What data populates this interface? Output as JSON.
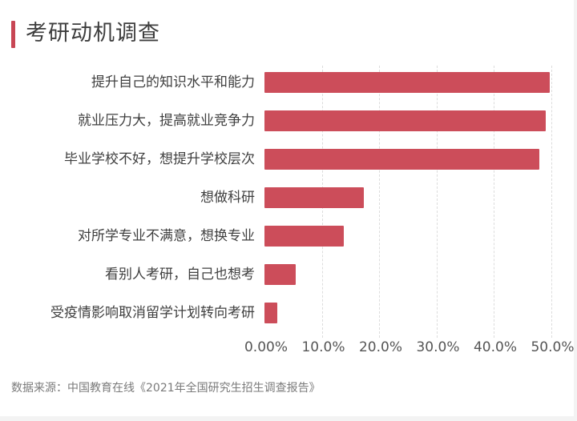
{
  "header": {
    "title": "考研动机调查",
    "accent_color": "#c84654"
  },
  "chart_data": {
    "type": "bar",
    "orientation": "horizontal",
    "title": "考研动机调查",
    "xlabel": "",
    "ylabel": "",
    "xlim": [
      0,
      50
    ],
    "grid": true,
    "bar_color": "#cc4d5a",
    "categories": [
      "提升自己的知识水平和能力",
      "就业压力大，提高就业竞争力",
      "毕业学校不好，想提升学校层次",
      "想做科研",
      "对所学专业不满意，想换专业",
      "看别人考研，自己也想考",
      "受疫情影响取消留学计划转向考研"
    ],
    "values": [
      49.8,
      49.1,
      48.0,
      17.3,
      13.8,
      5.5,
      2.2
    ],
    "x_ticks": [
      "0.00%",
      "10.0%",
      "20.0%",
      "30.0%",
      "40.0%",
      "50.0%"
    ]
  },
  "footer": {
    "source": "数据来源：中国教育在线《2021年全国研究生招生调查报告》"
  }
}
